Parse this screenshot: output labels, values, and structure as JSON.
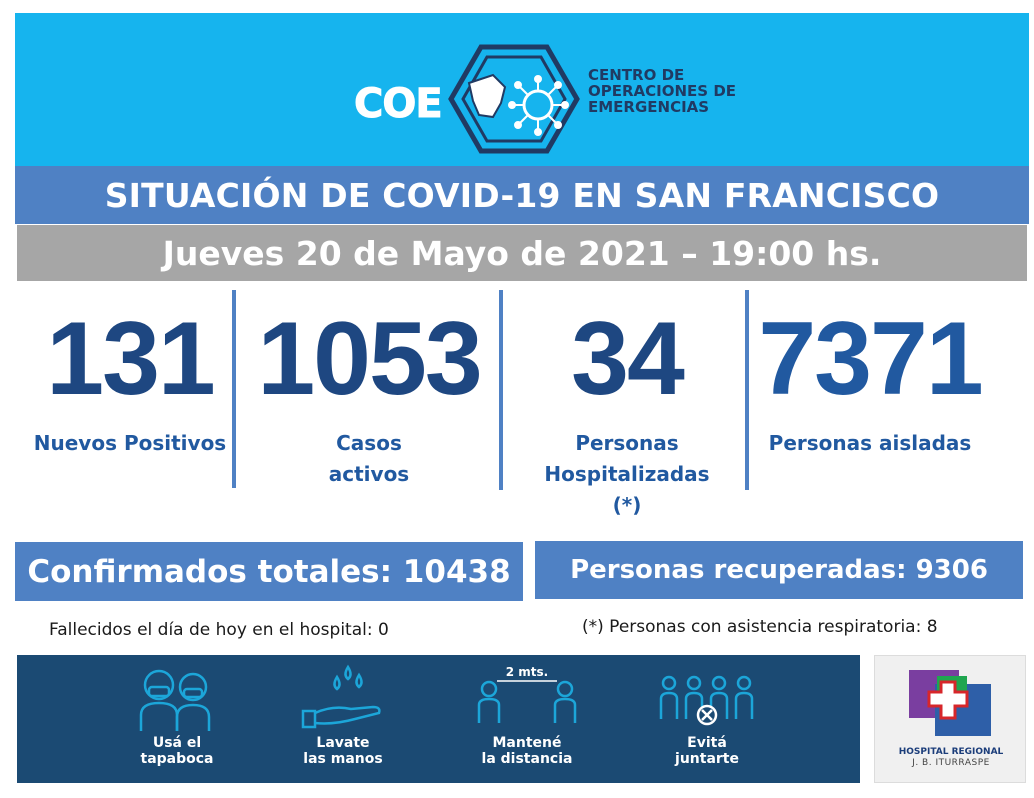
{
  "header": {
    "logo_acronym": "COE",
    "logo_lines": [
      "CENTRO DE",
      "OPERACIONES DE",
      "EMERGENCIAS"
    ]
  },
  "title": "SITUACIÓN DE COVID-19 EN SAN FRANCISCO",
  "date": "Jueves 20 de Mayo de 2021 – 19:00 hs.",
  "stats": [
    {
      "value": "131",
      "label_lines": [
        "Nuevos Positivos"
      ]
    },
    {
      "value": "1053",
      "label_lines": [
        "Casos",
        "activos"
      ]
    },
    {
      "value": "34",
      "label_lines": [
        "Personas",
        "Hospitalizadas",
        "(*)"
      ]
    },
    {
      "value": "7371",
      "label_lines": [
        "Personas aisladas"
      ]
    }
  ],
  "totals": {
    "confirmados": "Confirmados totales: 10438",
    "recuperadas": "Personas recuperadas: 9306"
  },
  "notes": {
    "fallecidos": "Fallecidos el día de hoy en el hospital: 0",
    "asistencia": "(*) Personas con asistencia respiratoria: 8"
  },
  "tips": [
    {
      "icon": "mask-icon",
      "lines": [
        "Usá el",
        "tapaboca"
      ]
    },
    {
      "icon": "handwash-icon",
      "lines": [
        "Lavate",
        "las manos"
      ]
    },
    {
      "icon": "distance-icon",
      "distance_label": "2 mts.",
      "lines": [
        "Mantené",
        "la distancia"
      ]
    },
    {
      "icon": "no-gathering-icon",
      "lines": [
        "Evitá",
        "juntarte"
      ]
    }
  ],
  "hospital": {
    "line1": "HOSPITAL REGIONAL",
    "line2": "J. B. ITURRASPE"
  },
  "colors": {
    "header_bg": "#16b4ee",
    "accent_blue": "#4f81c4",
    "number_blue": "#1e4781",
    "footer_bg": "#1b4a73",
    "gray_bar": "#a6a6a6"
  }
}
